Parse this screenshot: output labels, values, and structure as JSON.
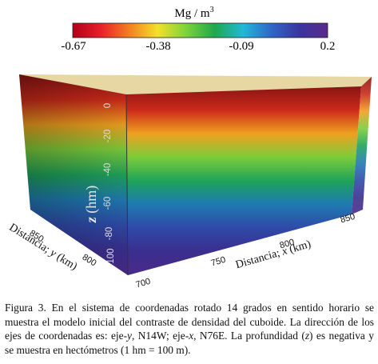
{
  "colorbar": {
    "title_prefix": "Mg / m",
    "title_exponent": "3",
    "ticks": [
      "-0.67",
      "-0.38",
      "-0.09",
      "0.2"
    ],
    "colors": [
      "#b00018",
      "#e8202a",
      "#f38020",
      "#f3e02a",
      "#7cd43a",
      "#1fa84a",
      "#22b8d8",
      "#2f68c8",
      "#3a34a0",
      "#5a2a8c"
    ]
  },
  "axes": {
    "z_label_parts": [
      "z",
      " (hm)"
    ],
    "z_ticks": [
      "0",
      "-20",
      "-40",
      "-60",
      "-80",
      "-100"
    ],
    "x_label_parts": [
      "Distancia; ",
      "x",
      " (km)"
    ],
    "x_ticks": [
      "700",
      "750",
      "800",
      "850"
    ],
    "y_label_parts": [
      "Distancia; ",
      "y",
      " (km)"
    ],
    "y_ticks": [
      "800",
      "850"
    ]
  },
  "cuboid_colors": {
    "top": "#e6d7a3",
    "front_gradient": [
      "#8a1414",
      "#cc2a1a",
      "#f0a020",
      "#7ccc3a",
      "#1fa35a",
      "#1f7ab2",
      "#2f4aa8",
      "#3a2e8e",
      "#4a2a88"
    ]
  },
  "caption": {
    "parts": [
      {
        "t": "Figura 3. En el sistema de coordenadas rotado 14 grados en sentido horario se muestra el modelo inicial del contraste de densidad del cuboide.  La dirección de los ejes de coordenadas es: eje-",
        "i": false
      },
      {
        "t": "y",
        "i": true
      },
      {
        "t": ", N14W; eje-",
        "i": false
      },
      {
        "t": "x",
        "i": true
      },
      {
        "t": ", N76E. La profundidad (",
        "i": false
      },
      {
        "t": "z",
        "i": true
      },
      {
        "t": ") es negativa y se muestra en hectómetros (1 hm = 100 m).",
        "i": false
      }
    ]
  }
}
